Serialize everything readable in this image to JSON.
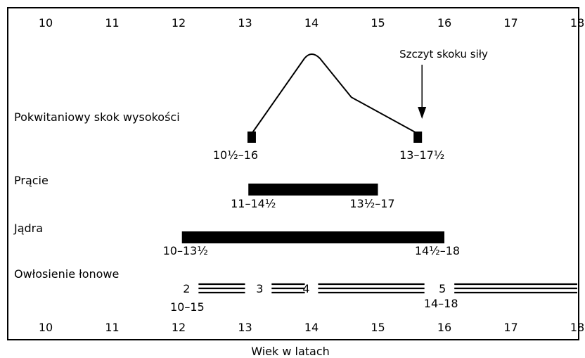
{
  "axis": {
    "ticks": [
      "10",
      "11",
      "12",
      "13",
      "14",
      "15",
      "16",
      "17",
      "18"
    ],
    "min": 10,
    "max": 18,
    "label": "Wiek w latach"
  },
  "rows": {
    "growth_spurt": {
      "label": "Pokwitaniowy skok wysokości",
      "start_range": "10½–16",
      "end_range": "13–17½",
      "curve": [
        [
          13.1,
          0
        ],
        [
          14.0,
          1
        ],
        [
          14.6,
          0.45
        ],
        [
          15.6,
          0
        ]
      ],
      "peak_annotation": "Szczyt skoku siły"
    },
    "penis": {
      "label": "Prącie",
      "start": 13.05,
      "end": 15.0,
      "start_range": "11–14½",
      "end_range": "13½–17"
    },
    "testes": {
      "label": "Jądra",
      "start": 12.05,
      "end": 16.0,
      "start_range": "10–13½",
      "end_range": "14½–18"
    },
    "pubic_hair": {
      "label": "Owłosienie łonowe",
      "stages": [
        {
          "stage": "2",
          "start": 12.3,
          "end": 13.0
        },
        {
          "stage": "3",
          "start": 13.4,
          "end": 13.9
        },
        {
          "stage": "4",
          "start": 14.1,
          "end": 15.7
        },
        {
          "stage": "5",
          "start": 16.15,
          "end": 18.0
        }
      ],
      "range_stage_2": "10–15",
      "range_stage_5": "14–18"
    }
  }
}
